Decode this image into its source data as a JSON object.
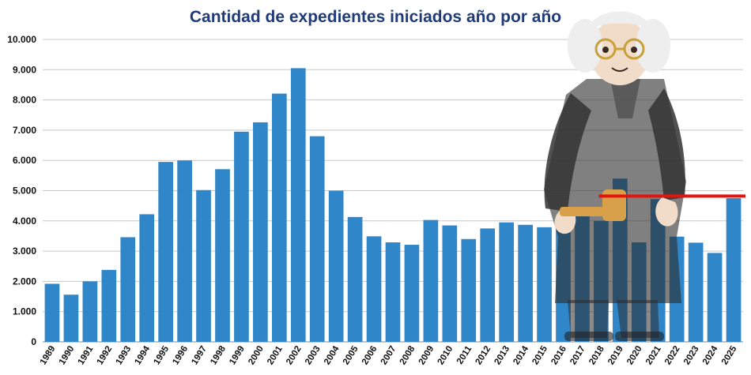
{
  "chart_data": {
    "type": "bar",
    "title": "Cantidad de expedientes iniciados año por año",
    "xlabel": "",
    "ylabel": "",
    "ylim": [
      0,
      10000
    ],
    "grid": true,
    "legend": "none",
    "y_ticks": [
      "0",
      "1.000",
      "2.000",
      "3.000",
      "4.000",
      "5.000",
      "6.000",
      "7.000",
      "8.000",
      "9.000",
      "10.000"
    ],
    "categories": [
      "1989",
      "1990",
      "1991",
      "1992",
      "1993",
      "1994",
      "1995",
      "1996",
      "1997",
      "1998",
      "1999",
      "2000",
      "2001",
      "2002",
      "2003",
      "2004",
      "2005",
      "2006",
      "2007",
      "2008",
      "2009",
      "2010",
      "2011",
      "2012",
      "2013",
      "2014",
      "2015",
      "2016",
      "2017",
      "2018",
      "2019",
      "2020",
      "2021",
      "2022",
      "2023",
      "2024",
      "2025"
    ],
    "values": [
      1920,
      1560,
      2000,
      2380,
      3460,
      4220,
      5950,
      6000,
      5020,
      5710,
      6950,
      7260,
      8210,
      9050,
      6800,
      5000,
      4130,
      3490,
      3290,
      3210,
      4030,
      3850,
      3400,
      3750,
      3950,
      3870,
      3790,
      4180,
      4160,
      4000,
      5400,
      3290,
      4720,
      3480,
      3280,
      2940,
      4750
    ],
    "reference_line": {
      "value": 4820
    }
  },
  "colors": {
    "bar": "#2f86c8",
    "title": "#1f3b7a",
    "grid": "#c8c8c8",
    "axis": "#888888",
    "reference_line": "#e8120c",
    "robe": "#2b2b2b",
    "hair": "#eeeeee",
    "skin": "#f1dcc9",
    "glasses": "#c9a13a",
    "gavel": "#d9a04a"
  },
  "illustration": {
    "description_icon": "judge-figure-icon"
  }
}
